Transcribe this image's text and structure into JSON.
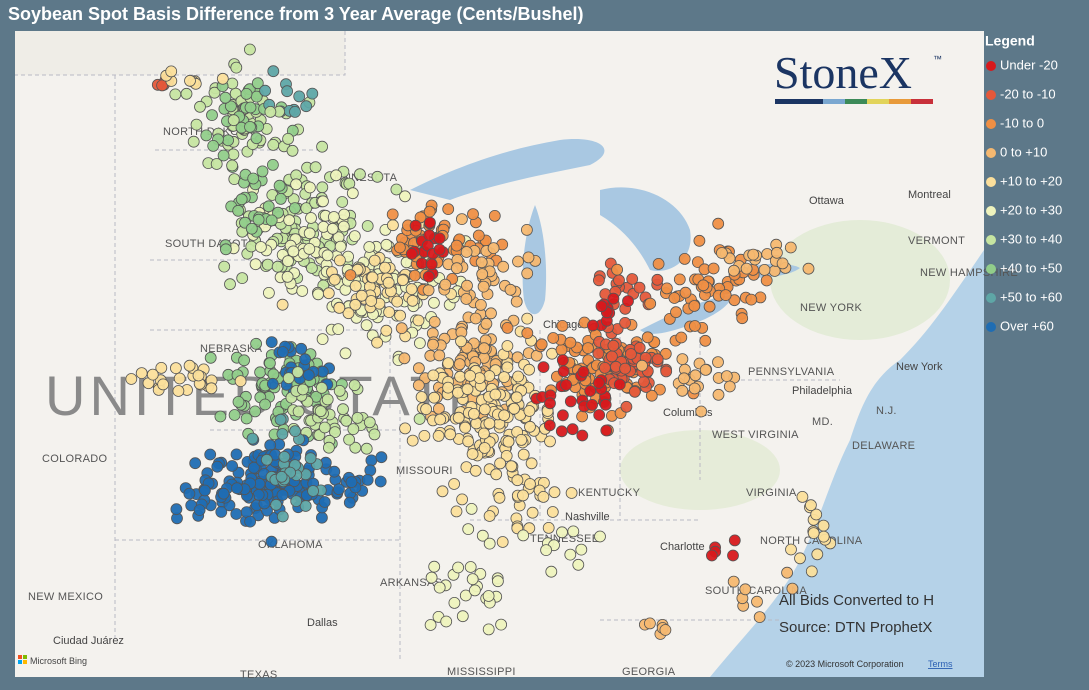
{
  "title": "Soybean Spot Basis Difference from 3 Year Average (Cents/Bushel)",
  "legend": {
    "title": "Legend",
    "items": [
      {
        "label": "Under -20",
        "color": "#d7191c"
      },
      {
        "label": "-20 to -10",
        "color": "#e4583a"
      },
      {
        "label": "-10 to 0",
        "color": "#ef8f44"
      },
      {
        "label": "0 to +10",
        "color": "#f5b870"
      },
      {
        "label": "+10 to +20",
        "color": "#fbdf9b"
      },
      {
        "label": "+20 to +30",
        "color": "#eef3bd"
      },
      {
        "label": "+30 to +40",
        "color": "#c6e5a1"
      },
      {
        "label": "+40 to +50",
        "color": "#91cd8a"
      },
      {
        "label": "+50 to +60",
        "color": "#5ea6a6"
      },
      {
        "label": "Over +60",
        "color": "#1f6db3"
      }
    ]
  },
  "logo": {
    "name": "StoneX",
    "mark": "™"
  },
  "notes": [
    "All Bids Converted to H",
    "Source: DTN ProphetX"
  ],
  "map_labels": [
    "NORTH DAKOTA",
    "MINNESOTA",
    "SOUTH DAKOTA",
    "NEBRASKA",
    "UNITED STATES",
    "COLORADO",
    "OKLAHOMA",
    "MISSOURI",
    "ARKANSAS",
    "TENNESSEE",
    "KENTUCKY",
    "Nashville",
    "WEST VIRGINIA",
    "VIRGINIA",
    "NORTH CAROLINA",
    "SOUTH CAROLINA",
    "GEORGIA",
    "MISSISSIPPI",
    "TEXAS",
    "NEW MEXICO",
    "Dallas",
    "Ciudad Juárez",
    "PENNSYLVANIA",
    "NEW YORK",
    "New York",
    "Philadelphia",
    "Columbus",
    "Chicago",
    "Ottawa",
    "Montreal",
    "VERMONT",
    "NEW HAMPSHIRE",
    "MD.",
    "N.J.",
    "DELAWARE",
    "Charlotte"
  ],
  "attribution": {
    "bing": "Microsoft Bing",
    "copyright": "© 2023 Microsoft Corporation",
    "terms": "Terms"
  }
}
